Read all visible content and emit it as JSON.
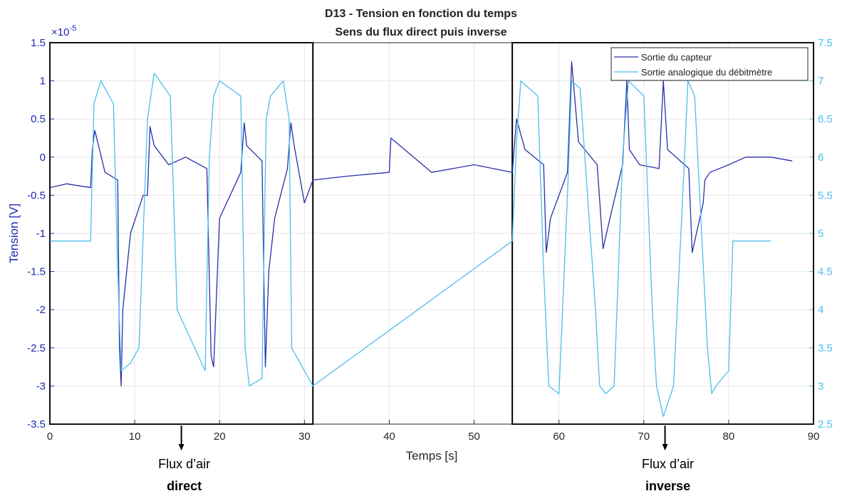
{
  "chart_data": {
    "type": "line",
    "title": "D13 - Tension en fonction du temps",
    "subtitle": "Sens du flux direct puis inverse",
    "xlabel": "Temps [s]",
    "ylabel_left": "Tension [V]",
    "ylabel_right": "",
    "xlim": [
      0,
      90
    ],
    "ylim_left": [
      -3.5,
      1.5
    ],
    "ylim_right": [
      2.5,
      7.5
    ],
    "y_exponent": "×10",
    "y_exponent_power": "-5",
    "xticks": [
      "0",
      "10",
      "20",
      "30",
      "40",
      "50",
      "60",
      "70",
      "80",
      "90"
    ],
    "yticks_left": [
      "-3.5",
      "-3",
      "-2.5",
      "-2",
      "-1.5",
      "-1",
      "-0.5",
      "0",
      "0.5",
      "1",
      "1.5"
    ],
    "yticks_right": [
      "2.5",
      "3",
      "3.5",
      "4",
      "4.5",
      "5",
      "5.5",
      "6",
      "6.5",
      "7",
      "7.5"
    ],
    "grid": true,
    "legend_position": "top-right",
    "colors": {
      "capteur": "#2b2fa8",
      "debitmetre": "#4dbeee",
      "left_axis": "#1f27b4",
      "right_axis": "#4dbeee"
    },
    "series": [
      {
        "name": "Sortie du capteur",
        "axis": "left",
        "x": [
          0,
          2,
          4.8,
          5,
          5.3,
          6.5,
          8,
          8.2,
          8.4,
          8.6,
          9.5,
          11,
          11.5,
          11.8,
          12.3,
          14,
          16,
          18.5,
          19,
          19.3,
          20,
          22.5,
          22.9,
          23.2,
          25,
          25.4,
          25.8,
          26.5,
          28,
          28.4,
          28.8,
          30,
          31,
          35,
          40,
          40.2,
          45,
          50,
          54.5,
          55,
          56,
          58.2,
          58.5,
          59,
          61,
          61.5,
          62.3,
          64.5,
          65.2,
          65.8,
          67.5,
          68,
          68.3,
          69.5,
          71.8,
          72.3,
          72.8,
          75.3,
          75.7,
          77,
          77.2,
          77.8,
          80,
          82,
          85,
          87.5
        ],
        "values": [
          -0.4,
          -0.35,
          -0.4,
          0.1,
          0.35,
          -0.2,
          -0.3,
          -2.5,
          -3.0,
          -2.0,
          -1.0,
          -0.5,
          -0.5,
          0.4,
          0.15,
          -0.1,
          0,
          -0.15,
          -2.6,
          -2.75,
          -0.8,
          -0.2,
          0.45,
          0.15,
          -0.05,
          -2.75,
          -1.5,
          -0.8,
          -0.15,
          0.45,
          0.15,
          -0.6,
          -0.3,
          -0.25,
          -0.2,
          0.25,
          -0.2,
          -0.1,
          -0.2,
          0.5,
          0.1,
          -0.1,
          -1.25,
          -0.8,
          -0.2,
          1.25,
          0.2,
          -0.1,
          -1.2,
          -0.9,
          -0.1,
          1.0,
          0.1,
          -0.1,
          -0.15,
          1.0,
          0.1,
          -0.15,
          -1.25,
          -0.6,
          -0.3,
          -0.2,
          -0.1,
          0,
          0,
          -0.05
        ]
      },
      {
        "name": "Sortie analogique du débitmètre",
        "axis": "right",
        "x": [
          0,
          4.8,
          5.2,
          6,
          7.5,
          8,
          8.4,
          9.5,
          10.5,
          11.5,
          12.3,
          14.2,
          15,
          18.3,
          18.8,
          19.3,
          20,
          22.5,
          23,
          23.5,
          25,
          25.5,
          26,
          27.5,
          28.2,
          28.5,
          31,
          54.5,
          55,
          55.5,
          57.5,
          58.2,
          58.8,
          60,
          61,
          61.5,
          62.5,
          64.3,
          64.8,
          65.5,
          66.5,
          67.5,
          68.2,
          70,
          71,
          71.5,
          72.3,
          73.5,
          74.8,
          75.2,
          76,
          77.5,
          78,
          78.5,
          80,
          80.5,
          85
        ],
        "values": [
          4.9,
          4.9,
          6.7,
          7.0,
          6.7,
          4.5,
          3.2,
          3.3,
          3.5,
          6.5,
          7.1,
          6.8,
          4.0,
          3.2,
          6.0,
          6.8,
          7.0,
          6.8,
          3.5,
          3.0,
          3.1,
          6.5,
          6.8,
          7.0,
          6.5,
          3.5,
          3.0,
          4.9,
          6.2,
          7.0,
          6.8,
          4.5,
          3.0,
          2.9,
          5.5,
          7.0,
          6.9,
          4.0,
          3.0,
          2.9,
          3.0,
          6.0,
          7.0,
          6.8,
          4.0,
          3.0,
          2.6,
          3.0,
          6.0,
          7.0,
          6.8,
          3.5,
          2.9,
          3.0,
          3.2,
          4.9,
          4.9
        ]
      }
    ],
    "annotations": [
      {
        "line1": "Flux d’air",
        "line2": "direct",
        "x": 15.5
      },
      {
        "line1": "Flux d’air",
        "line2": "inverse",
        "x": 72.5
      }
    ],
    "regions": [
      {
        "x_start": 0,
        "x_end": 31
      },
      {
        "x_start": 54.5,
        "x_end": 90
      }
    ]
  }
}
